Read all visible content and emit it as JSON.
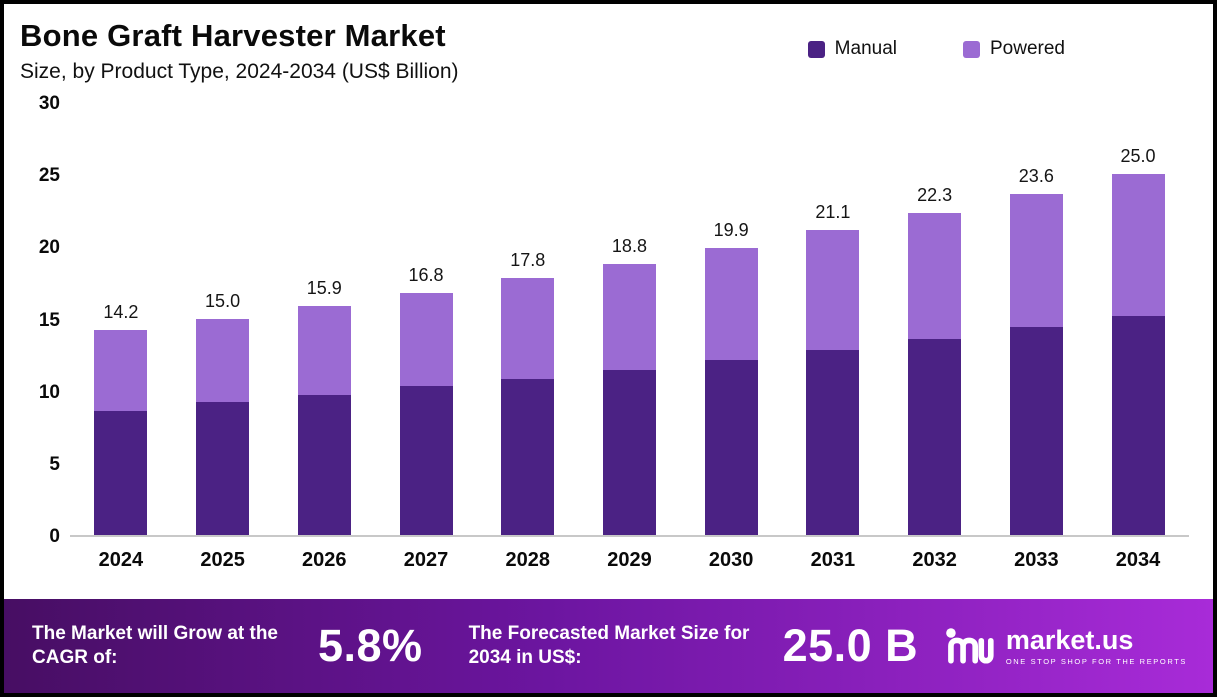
{
  "header": {
    "title": "Bone Graft Harvester Market",
    "subtitle": "Size, by Product Type, 2024-2034 (US$ Billion)"
  },
  "legend": [
    {
      "label": "Manual",
      "color": "#4B2284"
    },
    {
      "label": "Powered",
      "color": "#9B6BD3"
    }
  ],
  "chart_data": {
    "type": "bar",
    "stacked": true,
    "title": "Bone Graft Harvester Market Size, by Product Type, 2024-2034 (US$ Billion)",
    "categories": [
      "2024",
      "2025",
      "2026",
      "2027",
      "2028",
      "2029",
      "2030",
      "2031",
      "2032",
      "2033",
      "2034"
    ],
    "series": [
      {
        "name": "Manual",
        "color": "#4B2284",
        "values": [
          8.6,
          9.2,
          9.7,
          10.3,
          10.8,
          11.4,
          12.1,
          12.8,
          13.6,
          14.4,
          15.2
        ]
      },
      {
        "name": "Powered",
        "color": "#9B6BD3",
        "values": [
          5.6,
          5.8,
          6.2,
          6.5,
          7.0,
          7.4,
          7.8,
          8.3,
          8.7,
          9.2,
          9.8
        ]
      }
    ],
    "totals": [
      14.2,
      15.0,
      15.9,
      16.8,
      17.8,
      18.8,
      19.9,
      21.1,
      22.3,
      23.6,
      25.0
    ],
    "total_labels": [
      "14.2",
      "15.0",
      "15.9",
      "16.8",
      "17.8",
      "18.8",
      "19.9",
      "21.1",
      "22.3",
      "23.6",
      "25.0"
    ],
    "y_ticks": [
      0,
      5,
      10,
      15,
      20,
      25,
      30
    ],
    "ylim": [
      0,
      30
    ],
    "xlabel": "",
    "ylabel": "",
    "grid": false,
    "legend_position": "top-right"
  },
  "footer": {
    "cagr_label": "The Market will Grow at the CAGR of:",
    "cagr_value": "5.8%",
    "forecast_label": "The Forecasted Market Size for 2034 in US$:",
    "forecast_value": "25.0 B",
    "brand": "market.us",
    "brand_tagline": "ONE STOP SHOP FOR THE REPORTS"
  },
  "colors": {
    "manual": "#4B2284",
    "powered": "#9B6BD3",
    "footer_gradient_start": "#470E63",
    "footer_gradient_end": "#A82BD8"
  }
}
